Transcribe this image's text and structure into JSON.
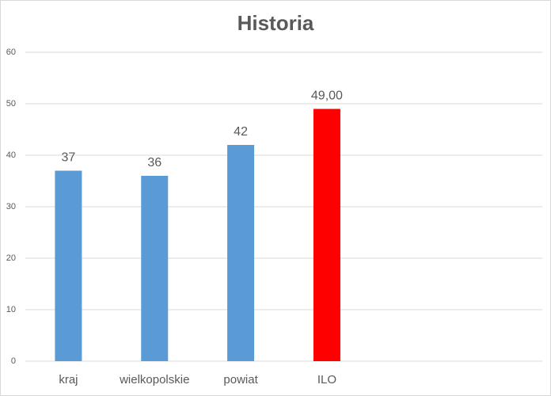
{
  "chart_data": {
    "type": "bar",
    "title": "Historia",
    "categories": [
      "kraj",
      "wielkopolskie",
      "powiat",
      "ILO",
      null,
      null
    ],
    "values": [
      37,
      36,
      42,
      49,
      null,
      null
    ],
    "value_labels": [
      "37",
      "36",
      "42",
      "49,00",
      null,
      null
    ],
    "colors": [
      "#5b9bd5",
      "#5b9bd5",
      "#5b9bd5",
      "#ff0000",
      null,
      null
    ],
    "ylim": [
      0,
      60
    ],
    "yticks": [
      0,
      10,
      20,
      30,
      40,
      50,
      60
    ],
    "grid": true
  }
}
